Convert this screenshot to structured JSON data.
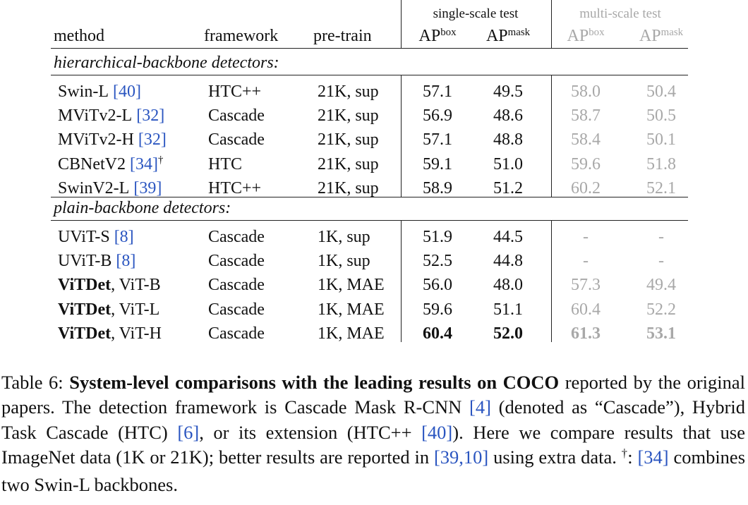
{
  "table": {
    "groups": [
      "single-scale test",
      "multi-scale test"
    ],
    "columns": [
      "method",
      "framework",
      "pre-train",
      {
        "base": "AP",
        "sup": "box"
      },
      {
        "base": "AP",
        "sup": "mask"
      },
      {
        "base": "AP",
        "sup": "box"
      },
      {
        "base": "AP",
        "sup": "mask"
      }
    ],
    "sections": [
      {
        "title": "hierarchical-backbone detectors:",
        "rows": [
          {
            "method": "Swin-L",
            "ref": "[40]",
            "framework": "HTC++",
            "pretrain": "21K, sup",
            "results": [
              "57.1",
              "49.5",
              "58.0",
              "50.4"
            ]
          },
          {
            "method": "MViTv2-L",
            "ref": "[32]",
            "framework": "Cascade",
            "pretrain": "21K, sup",
            "results": [
              "56.9",
              "48.6",
              "58.7",
              "50.5"
            ]
          },
          {
            "method": "MViTv2-H",
            "ref": "[32]",
            "framework": "Cascade",
            "pretrain": "21K, sup",
            "results": [
              "57.1",
              "48.8",
              "58.4",
              "50.1"
            ]
          },
          {
            "method": "CBNetV2",
            "ref": "[34]",
            "note": "†",
            "framework": "HTC",
            "pretrain": "21K, sup",
            "results": [
              "59.1",
              "51.0",
              "59.6",
              "51.8"
            ]
          },
          {
            "method": "SwinV2-L",
            "ref": "[39]",
            "framework": "HTC++",
            "pretrain": "21K, sup",
            "results": [
              "58.9",
              "51.2",
              "60.2",
              "52.1"
            ]
          }
        ]
      },
      {
        "title": "plain-backbone detectors:",
        "rows": [
          {
            "method": "UViT-S",
            "ref": "[8]",
            "framework": "Cascade",
            "pretrain": "1K, sup",
            "results": [
              "51.9",
              "44.5",
              "-",
              "-"
            ]
          },
          {
            "method": "UViT-B",
            "ref": "[8]",
            "framework": "Cascade",
            "pretrain": "1K, sup",
            "results": [
              "52.5",
              "44.8",
              "-",
              "-"
            ]
          },
          {
            "method_bold": "ViTDet",
            "method": ", ViT-B",
            "framework": "Cascade",
            "pretrain": "1K, MAE",
            "results": [
              "56.0",
              "48.0",
              "57.3",
              "49.4"
            ]
          },
          {
            "method_bold": "ViTDet",
            "method": ", ViT-L",
            "framework": "Cascade",
            "pretrain": "1K, MAE",
            "results": [
              "59.6",
              "51.1",
              "60.4",
              "52.2"
            ]
          },
          {
            "method_bold": "ViTDet",
            "method": ", ViT-H",
            "framework": "Cascade",
            "pretrain": "1K, MAE",
            "results": [
              "60.4",
              "52.0",
              "61.3",
              "53.1"
            ]
          }
        ]
      }
    ]
  },
  "caption": [
    {
      "style": "plain",
      "text": "Table 6: "
    },
    {
      "style": "bold",
      "text": "System-level comparisons with the leading results on COCO"
    },
    {
      "style": "plain",
      "text": " reported by the original papers. The detection framework is Cascade Mask R-CNN "
    },
    {
      "style": "ref",
      "text": "[4]"
    },
    {
      "style": "plain",
      "text": " (denoted as “Cascade”), Hybrid Task Cascade (HTC) "
    },
    {
      "style": "ref",
      "text": "[6]"
    },
    {
      "style": "plain",
      "text": ", or its extension (HTC++ "
    },
    {
      "style": "ref",
      "text": "[40]"
    },
    {
      "style": "plain",
      "text": "). Here we compare results that use ImageNet data (1K or 21K); better results are reported in "
    },
    {
      "style": "ref",
      "text": "[39,10]"
    },
    {
      "style": "plain",
      "text": " using extra data. "
    },
    {
      "style": "sup",
      "text": "†"
    },
    {
      "style": "plain",
      "text": ": "
    },
    {
      "style": "ref",
      "text": "[34]"
    },
    {
      "style": "plain",
      "text": " combines two Swin-L backbones."
    }
  ]
}
